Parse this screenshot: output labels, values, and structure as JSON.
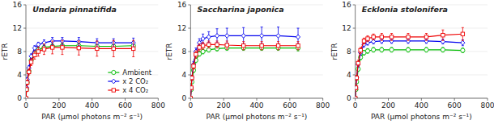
{
  "chart_data": [
    {
      "type": "line",
      "title": "Undaria pinnatifida",
      "xlabel": "PAR (μmol photons m⁻² s⁻¹)",
      "ylabel": "rETR",
      "xlim": [
        0,
        800
      ],
      "ylim": [
        0,
        16
      ],
      "xticks": [
        0,
        200,
        400,
        600,
        800
      ],
      "yticks": [
        0,
        4,
        8,
        12,
        16
      ],
      "legend": "lower right",
      "x": [
        0,
        4,
        8,
        18,
        32,
        53,
        75,
        110,
        160,
        220,
        320,
        430,
        530,
        650
      ],
      "series": [
        {
          "name": "Ambient",
          "color": "#00bb00",
          "marker": "circle",
          "values": [
            0,
            1.5,
            2.7,
            4.6,
            6.5,
            7.7,
            8.3,
            8.7,
            8.9,
            9.0,
            9.0,
            8.9,
            8.9,
            9.0
          ],
          "errors": [
            0,
            0.2,
            0.3,
            0.4,
            0.4,
            0.4,
            0.4,
            0.4,
            0.4,
            0.5,
            0.5,
            0.5,
            0.5,
            0.6
          ]
        },
        {
          "name": "x 2 CO₂",
          "color": "#0000ee",
          "marker": "diamond",
          "values": [
            0,
            1.8,
            3.2,
            5.2,
            7.2,
            8.6,
            9.2,
            9.5,
            9.8,
            9.8,
            9.7,
            9.5,
            9.5,
            9.5
          ],
          "errors": [
            0,
            0.2,
            0.3,
            0.4,
            0.4,
            0.4,
            0.4,
            0.5,
            0.6,
            0.6,
            0.7,
            0.7,
            0.7,
            0.8
          ]
        },
        {
          "name": "x 4 CO₂",
          "color": "#ee0000",
          "marker": "square",
          "values": [
            0,
            1.5,
            2.7,
            4.5,
            6.2,
            7.4,
            8.0,
            8.4,
            8.7,
            8.7,
            8.6,
            8.5,
            8.5,
            8.5
          ],
          "errors": [
            0,
            0.3,
            0.4,
            0.5,
            0.6,
            0.7,
            0.8,
            0.9,
            1.1,
            1.2,
            1.2,
            1.3,
            1.4,
            1.4
          ]
        }
      ]
    },
    {
      "type": "line",
      "title": "Saccharina japonica",
      "xlabel": "PAR (μmol photons m⁻² s⁻¹)",
      "ylabel": "rETR",
      "xlim": [
        0,
        800
      ],
      "ylim": [
        0,
        16
      ],
      "xticks": [
        0,
        200,
        400,
        600,
        800
      ],
      "yticks": [
        0,
        4,
        8,
        12,
        16
      ],
      "x": [
        0,
        4,
        8,
        18,
        32,
        53,
        75,
        110,
        160,
        220,
        320,
        430,
        530,
        650
      ],
      "series": [
        {
          "color": "#00bb00",
          "marker": "circle",
          "values": [
            0,
            1.5,
            2.8,
            4.8,
            6.5,
            7.6,
            8.0,
            8.3,
            8.5,
            8.6,
            8.6,
            8.6,
            8.6,
            8.6
          ],
          "errors": [
            0,
            0.2,
            0.3,
            0.4,
            0.4,
            0.4,
            0.4,
            0.4,
            0.4,
            0.4,
            0.4,
            0.4,
            0.4,
            0.5
          ]
        },
        {
          "color": "#0000ee",
          "marker": "diamond",
          "values": [
            0,
            1.8,
            3.5,
            5.8,
            8.0,
            9.5,
            10.2,
            10.5,
            10.7,
            10.7,
            10.7,
            10.7,
            10.7,
            10.5
          ],
          "errors": [
            0,
            0.2,
            0.4,
            0.5,
            0.6,
            0.7,
            0.8,
            0.9,
            1.2,
            1.3,
            1.4,
            1.5,
            1.5,
            1.5
          ]
        },
        {
          "color": "#ee0000",
          "marker": "square",
          "values": [
            0,
            1.8,
            3.5,
            5.5,
            7.5,
            8.7,
            9.0,
            9.2,
            9.2,
            9.1,
            9.0,
            9.0,
            9.0,
            9.0
          ],
          "errors": [
            0,
            0.3,
            0.4,
            0.5,
            0.6,
            0.6,
            0.6,
            0.6,
            0.6,
            0.7,
            0.7,
            0.7,
            0.7,
            0.7
          ]
        }
      ]
    },
    {
      "type": "line",
      "title": "Ecklonia stolonifera",
      "xlabel": "PAR (μmol photons m⁻² s⁻¹)",
      "ylabel": "rETR",
      "xlim": [
        0,
        800
      ],
      "ylim": [
        0,
        16
      ],
      "xticks": [
        0,
        200,
        400,
        600,
        800
      ],
      "yticks": [
        0,
        4,
        8,
        12,
        16
      ],
      "x": [
        0,
        4,
        8,
        18,
        32,
        53,
        75,
        110,
        160,
        220,
        320,
        430,
        530,
        650
      ],
      "series": [
        {
          "color": "#00bb00",
          "marker": "circle",
          "values": [
            0,
            1.5,
            2.8,
            5.0,
            7.0,
            7.8,
            8.1,
            8.3,
            8.3,
            8.3,
            8.3,
            8.3,
            8.3,
            8.2
          ],
          "errors": [
            0,
            0.2,
            0.3,
            0.4,
            0.4,
            0.4,
            0.4,
            0.4,
            0.4,
            0.4,
            0.4,
            0.4,
            0.4,
            0.4
          ]
        },
        {
          "color": "#0000ee",
          "marker": "diamond",
          "values": [
            0,
            1.8,
            3.5,
            5.8,
            7.8,
            9.2,
            9.5,
            9.7,
            9.8,
            9.8,
            9.8,
            9.8,
            9.7,
            9.5
          ],
          "errors": [
            0,
            0.2,
            0.3,
            0.4,
            0.4,
            0.4,
            0.4,
            0.4,
            0.4,
            0.4,
            0.4,
            0.4,
            0.4,
            0.5
          ]
        },
        {
          "color": "#ee0000",
          "marker": "square",
          "values": [
            0,
            1.8,
            3.5,
            6.0,
            8.2,
            9.8,
            10.2,
            10.5,
            10.5,
            10.5,
            10.5,
            10.5,
            10.8,
            11.0
          ],
          "errors": [
            0,
            0.3,
            0.4,
            0.5,
            0.5,
            0.5,
            0.5,
            0.5,
            0.6,
            0.6,
            0.6,
            0.6,
            0.9,
            1.1
          ]
        }
      ]
    }
  ]
}
